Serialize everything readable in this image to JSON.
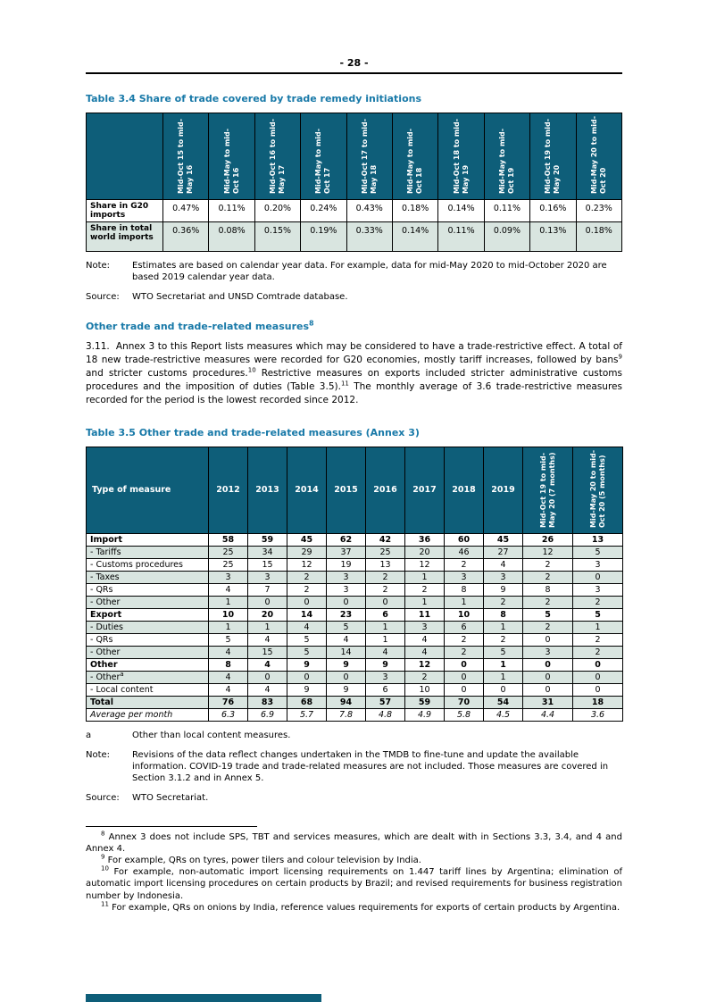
{
  "page_number": "- 28 -",
  "colors": {
    "heading": "#1879a8",
    "table_header_bg": "#0e5e79",
    "row_shade": "#d9e5e0",
    "footer_bar": "#0e5e79"
  },
  "table34": {
    "title": "Table 3.4 Share of trade covered by trade remedy initiations",
    "col_headers": [
      "Mid-Oct 15 to mid-May 16",
      "Mid-May to mid-Oct 16",
      "Mid-Oct 16 to mid-May 17",
      "Mid-May to mid-Oct 17",
      "Mid-Oct 17 to mid-May 18",
      "Mid-May to mid-Oct 18",
      "Mid-Oct 18 to mid-May 19",
      "Mid-May to mid-Oct 19",
      "Mid-Oct 19 to mid-May 20",
      "Mid-May 20 to mid-Oct 20"
    ],
    "rows": [
      {
        "label": "Share in G20 imports",
        "values": [
          "0.47%",
          "0.11%",
          "0.20%",
          "0.24%",
          "0.43%",
          "0.18%",
          "0.14%",
          "0.11%",
          "0.16%",
          "0.23%"
        ]
      },
      {
        "label": "Share in total world imports",
        "values": [
          "0.36%",
          "0.08%",
          "0.15%",
          "0.19%",
          "0.33%",
          "0.14%",
          "0.11%",
          "0.09%",
          "0.13%",
          "0.18%"
        ]
      }
    ],
    "note_label": "Note:",
    "note_text": "Estimates are based on calendar year data. For example, data for mid-May 2020 to mid-October 2020 are based 2019 calendar year data.",
    "source_label": "Source:",
    "source_text": "WTO Secretariat and UNSD Comtrade database."
  },
  "section": {
    "heading": "Other trade and trade-related measures",
    "heading_sup": "8"
  },
  "para311": {
    "segments": [
      {
        "t": "3.11.  Annex 3 to this Report lists measures which may be considered to have a trade-restrictive effect. A total of 18 new trade-restrictive measures were recorded for G20 economies, mostly tariff increases, followed by bans"
      },
      {
        "sup": "9"
      },
      {
        "t": " and stricter customs procedures."
      },
      {
        "sup": "10"
      },
      {
        "t": " Restrictive measures on exports included stricter administrative customs procedures and the imposition of duties (Table 3.5)."
      },
      {
        "sup": "11"
      },
      {
        "t": " The monthly average of 3.6 trade-restrictive measures recorded for the period is the lowest recorded since 2012."
      }
    ]
  },
  "table35": {
    "title": "Table 3.5 Other trade and trade-related measures (Annex 3)",
    "corner_header": "Type of measure",
    "year_headers": [
      "2012",
      "2013",
      "2014",
      "2015",
      "2016",
      "2017",
      "2018",
      "2019"
    ],
    "rotated_headers": [
      "Mid-Oct 19 to mid-May 20 (7 months)",
      "Mid-May 20 to mid-Oct 20 (5 months)"
    ],
    "rows": [
      {
        "label": "Import",
        "style": "bold",
        "shaded": false,
        "values": [
          "58",
          "59",
          "45",
          "62",
          "42",
          "36",
          "60",
          "45",
          "26",
          "13"
        ]
      },
      {
        "label": "- Tariffs",
        "style": "normal",
        "shaded": true,
        "values": [
          "25",
          "34",
          "29",
          "37",
          "25",
          "20",
          "46",
          "27",
          "12",
          "5"
        ]
      },
      {
        "label": "- Customs procedures",
        "style": "normal",
        "shaded": false,
        "values": [
          "25",
          "15",
          "12",
          "19",
          "13",
          "12",
          "2",
          "4",
          "2",
          "3"
        ]
      },
      {
        "label": "- Taxes",
        "style": "normal",
        "shaded": true,
        "values": [
          "3",
          "3",
          "2",
          "3",
          "2",
          "1",
          "3",
          "3",
          "2",
          "0"
        ]
      },
      {
        "label": "- QRs",
        "style": "normal",
        "shaded": false,
        "values": [
          "4",
          "7",
          "2",
          "3",
          "2",
          "2",
          "8",
          "9",
          "8",
          "3"
        ]
      },
      {
        "label": "- Other",
        "style": "normal",
        "shaded": true,
        "values": [
          "1",
          "0",
          "0",
          "0",
          "0",
          "1",
          "1",
          "2",
          "2",
          "2"
        ]
      },
      {
        "label": "Export",
        "style": "bold",
        "shaded": false,
        "values": [
          "10",
          "20",
          "14",
          "23",
          "6",
          "11",
          "10",
          "8",
          "5",
          "5"
        ]
      },
      {
        "label": "- Duties",
        "style": "normal",
        "shaded": true,
        "values": [
          "1",
          "1",
          "4",
          "5",
          "1",
          "3",
          "6",
          "1",
          "2",
          "1"
        ]
      },
      {
        "label": "- QRs",
        "style": "normal",
        "shaded": false,
        "values": [
          "5",
          "4",
          "5",
          "4",
          "1",
          "4",
          "2",
          "2",
          "0",
          "2"
        ]
      },
      {
        "label": "- Other",
        "style": "normal",
        "shaded": true,
        "values": [
          "4",
          "15",
          "5",
          "14",
          "4",
          "4",
          "2",
          "5",
          "3",
          "2"
        ]
      },
      {
        "label": "Other",
        "style": "bold",
        "shaded": false,
        "values": [
          "8",
          "4",
          "9",
          "9",
          "9",
          "12",
          "0",
          "1",
          "0",
          "0"
        ]
      },
      {
        "label": "- Other",
        "label_sup": "a",
        "style": "normal",
        "shaded": true,
        "values": [
          "4",
          "0",
          "0",
          "0",
          "3",
          "2",
          "0",
          "1",
          "0",
          "0"
        ]
      },
      {
        "label": "- Local content",
        "style": "normal",
        "shaded": false,
        "values": [
          "4",
          "4",
          "9",
          "9",
          "6",
          "10",
          "0",
          "0",
          "0",
          "0"
        ]
      },
      {
        "label": "Total",
        "style": "bold",
        "shaded": true,
        "values": [
          "76",
          "83",
          "68",
          "94",
          "57",
          "59",
          "70",
          "54",
          "31",
          "18"
        ]
      },
      {
        "label": "Average per month",
        "style": "italic",
        "shaded": false,
        "values": [
          "6.3",
          "6.9",
          "5.7",
          "7.8",
          "4.8",
          "4.9",
          "5.8",
          "4.5",
          "4.4",
          "3.6"
        ]
      }
    ],
    "footnote_a_label": "a",
    "footnote_a_text": "Other than local content measures.",
    "note_label": "Note:",
    "note_text": "Revisions of the data reflect changes undertaken in the TMDB to fine-tune and update the available information. COVID-19 trade and trade-related measures are not included. Those measures are covered in Section 3.1.2 and in Annex 5.",
    "source_label": "Source:",
    "source_text": "WTO Secretariat."
  },
  "footnotes": [
    {
      "num": "8",
      "text": "Annex 3 does not include SPS, TBT and services measures, which are dealt with in Sections 3.3, 3.4, and 4 and Annex 4."
    },
    {
      "num": "9",
      "text": "For example, QRs on tyres, power tilers and colour television by India."
    },
    {
      "num": "10",
      "text": "For example, non-automatic import licensing requirements on 1.447 tariff lines by Argentina; elimination of automatic import licensing procedures on certain products by Brazil; and revised requirements for business registration number by Indonesia."
    },
    {
      "num": "11",
      "text": "For example, QRs on onions by India, reference values requirements for exports of certain products by Argentina."
    }
  ]
}
